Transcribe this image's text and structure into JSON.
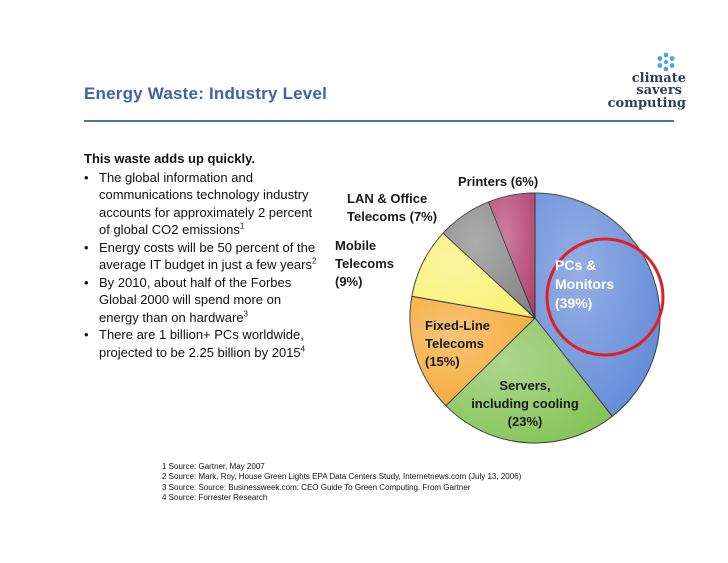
{
  "slide": {
    "title": "Energy Waste: Industry Level",
    "intro": "This waste adds up quickly.",
    "bullets": [
      {
        "text": "The global information and communications technology industry accounts for approximately 2 percent of global CO2 emissions",
        "sup": "1"
      },
      {
        "text": "Energy costs will be 50 percent of the average IT budget in just a few years",
        "sup": "2"
      },
      {
        "text": "By 2010, about half of the Forbes Global 2000 will spend more on energy than on hardware",
        "sup": "3"
      },
      {
        "text": "There are 1 billion+ PCs worldwide, projected to be 2.25 billion by 2015",
        "sup": "4"
      }
    ],
    "sources": [
      "1 Source: Gartner, May 2007",
      "2 Source: Mark, Roy, House Green Lights EPA Data Centers Study, Internetnews.com (July 13, 2006)",
      "3 Source: Source: Businessweek.com: CEO Guide To Green Computing.  From Gartner",
      "4 Source: Forrester Research"
    ],
    "logo": {
      "line1": "climate",
      "line2": "savers",
      "line3": "computing"
    }
  },
  "chart_data": {
    "type": "pie",
    "title": "",
    "slices": [
      {
        "label_lines": [
          "PCs &",
          "Monitors",
          "(39%)"
        ],
        "value": 39,
        "color": "#5b84d6",
        "highlighted": true
      },
      {
        "label_lines": [
          "Servers,",
          "including cooling",
          "(23%)"
        ],
        "value": 23,
        "color": "#7fc04f"
      },
      {
        "label_lines": [
          "Fixed-Line",
          "Telecoms",
          "(15%)"
        ],
        "value": 15,
        "color": "#f4a52c"
      },
      {
        "label_lines": [
          "Mobile",
          "Telecoms",
          "(9%)"
        ],
        "value": 9,
        "color": "#f9f06d"
      },
      {
        "label_lines": [
          "LAN & Office",
          "Telecoms (7%)"
        ],
        "value": 7,
        "color": "#808080"
      },
      {
        "label_lines": [
          "Printers (6%)"
        ],
        "value": 6,
        "color": "#b23a6a"
      }
    ],
    "highlight_color": "#e02020"
  }
}
